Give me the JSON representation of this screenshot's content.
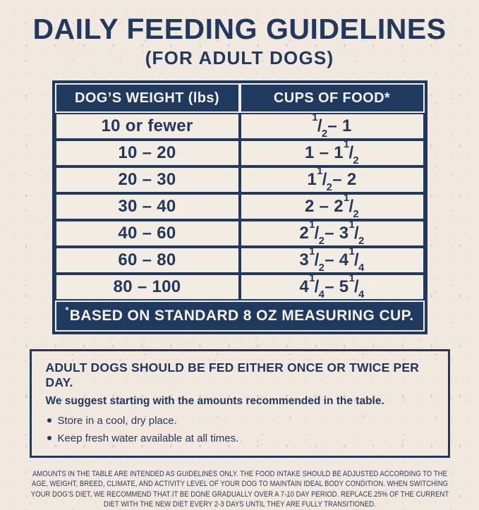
{
  "header": {
    "title": "DAILY FEEDING GUIDELINES",
    "subtitle": "(FOR ADULT DOGS)"
  },
  "colors": {
    "navy": "#21395c",
    "cream_background": "#f1e8df",
    "light_text": "#f7f1e8"
  },
  "table": {
    "columns": [
      "DOG’S WEIGHT (lbs)",
      "CUPS OF FOOD*"
    ],
    "rows": [
      {
        "weight": "10 or fewer",
        "cups": "{1/2} – 1"
      },
      {
        "weight": "10 – 20",
        "cups": "1 – 1 {1/2}"
      },
      {
        "weight": "20 – 30",
        "cups": "1 {1/2} – 2"
      },
      {
        "weight": "30 – 40",
        "cups": "2 – 2 {1/2}"
      },
      {
        "weight": "40 – 60",
        "cups": "2 {1/2} – 3 {1/2}"
      },
      {
        "weight": "60 – 80",
        "cups": "3 {1/2} – 4 {1/4}"
      },
      {
        "weight": "80 – 100",
        "cups": "4 {1/4} – 5 {1/4}"
      }
    ],
    "footnote_marker": "*",
    "footnote": "BASED ON STANDARD 8 OZ MEASURING CUP."
  },
  "info_box": {
    "heading": "ADULT DOGS SHOULD BE FED EITHER ONCE OR TWICE PER DAY.",
    "subheading": "We suggest starting with the amounts recommended in the table.",
    "bullets": [
      "Store in a cool, dry place.",
      "Keep fresh water available at all times."
    ]
  },
  "fine_print": "AMOUNTS IN THE TABLE ARE INTENDED AS GUIDELINES ONLY. THE FOOD INTAKE SHOULD BE ADJUSTED ACCORDING TO THE AGE, WEIGHT, BREED, CLIMATE, AND ACTIVITY LEVEL OF YOUR DOG TO MAINTAIN IDEAL BODY CONDITION. WHEN SWITCHING YOUR DOG’S DIET, WE RECOMMEND THAT IT BE DONE GRADUALLY OVER A 7-10 DAY PERIOD. REPLACE 25% OF THE CURRENT DIET WITH THE NEW DIET EVERY 2-3 DAYS UNTIL THEY ARE FULLY TRANSITIONED."
}
